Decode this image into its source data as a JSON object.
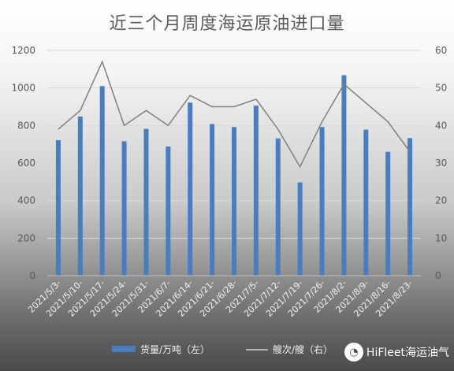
{
  "chart_data": {
    "type": "bar",
    "title": "近三个月周度海运原油进口量",
    "categories": [
      "2021/5/3-",
      "2021/5/10-",
      "2021/5/17-",
      "2021/5/24-",
      "2021/5/31-",
      "2021/6/7-",
      "2021/6/14-",
      "2021/6/21-",
      "2021/6/28-",
      "2021/7/5-",
      "2021/7/12-",
      "2021/7/19-",
      "2021/7/26-",
      "2021/8/2-",
      "2021/8/9-",
      "2021/8/16-",
      "2021/8/23-"
    ],
    "series": [
      {
        "name": "货量/万吨（左）",
        "type": "bar",
        "axis": "left",
        "color": "#4a7cc0",
        "values": [
          722,
          848,
          1010,
          716,
          782,
          688,
          922,
          808,
          792,
          906,
          731,
          497,
          792,
          1068,
          778,
          660,
          733
        ]
      },
      {
        "name": "艘次/艘（右）",
        "type": "line",
        "axis": "right",
        "color": "#7f7f7f",
        "values": [
          39,
          44,
          57,
          40,
          44,
          40,
          48,
          45,
          45,
          47,
          39,
          29,
          41,
          51,
          46,
          41,
          33
        ]
      }
    ],
    "y_left": {
      "min": 0,
      "max": 1200,
      "ticks": [
        0,
        200,
        400,
        600,
        800,
        1000,
        1200
      ]
    },
    "y_right": {
      "min": 0,
      "max": 60,
      "ticks": [
        0,
        10,
        20,
        30,
        40,
        50,
        60
      ]
    },
    "grid": true,
    "legend_position": "bottom"
  },
  "watermark": {
    "text": "HiFleet海运油气",
    "icon": "wechat-icon"
  }
}
